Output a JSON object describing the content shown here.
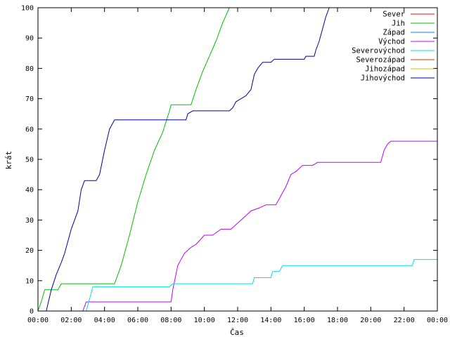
{
  "chart_data": {
    "type": "line",
    "title": "",
    "xlabel": "Čas",
    "ylabel": "krát",
    "xlim": [
      0,
      24
    ],
    "ylim": [
      0,
      100
    ],
    "grid": false,
    "legend_position": "top-right",
    "x_ticks": [
      "00:00",
      "02:00",
      "04:00",
      "06:00",
      "08:00",
      "10:00",
      "12:00",
      "14:00",
      "16:00",
      "18:00",
      "20:00",
      "22:00",
      "00:00"
    ],
    "y_ticks": [
      "0",
      "10",
      "20",
      "30",
      "40",
      "50",
      "60",
      "70",
      "80",
      "90",
      "100"
    ],
    "series": [
      {
        "name": "Sever",
        "color": "#ff0000",
        "points": []
      },
      {
        "name": "Jih",
        "color": "#00c000",
        "points": [
          [
            0.0,
            0
          ],
          [
            0.2,
            3
          ],
          [
            0.4,
            7
          ],
          [
            0.7,
            7
          ],
          [
            1.2,
            7
          ],
          [
            1.4,
            9
          ],
          [
            2.5,
            9
          ],
          [
            4.6,
            9
          ],
          [
            5.0,
            15
          ],
          [
            5.5,
            25
          ],
          [
            6.0,
            36
          ],
          [
            6.5,
            45
          ],
          [
            7.0,
            53
          ],
          [
            7.5,
            59
          ],
          [
            7.9,
            66
          ],
          [
            8.0,
            68
          ],
          [
            8.5,
            68
          ],
          [
            9.2,
            68
          ],
          [
            9.5,
            73
          ],
          [
            9.9,
            79
          ],
          [
            10.3,
            84
          ],
          [
            10.7,
            89
          ],
          [
            11.1,
            95
          ],
          [
            11.5,
            100
          ]
        ]
      },
      {
        "name": "Západ",
        "color": "#0080ff",
        "points": []
      },
      {
        "name": "Východ",
        "color": "#c000ff",
        "points": [
          [
            2.7,
            0
          ],
          [
            2.9,
            3
          ],
          [
            4.0,
            3
          ],
          [
            8.0,
            3
          ],
          [
            8.1,
            7
          ],
          [
            8.4,
            15
          ],
          [
            8.8,
            19
          ],
          [
            9.2,
            21
          ],
          [
            9.5,
            22
          ],
          [
            10.0,
            25
          ],
          [
            10.5,
            25
          ],
          [
            11.0,
            27
          ],
          [
            11.6,
            27
          ],
          [
            12.0,
            29
          ],
          [
            12.4,
            31
          ],
          [
            12.8,
            33
          ],
          [
            13.3,
            34
          ],
          [
            13.7,
            35
          ],
          [
            14.3,
            35
          ],
          [
            14.6,
            38
          ],
          [
            14.9,
            41
          ],
          [
            15.2,
            45
          ],
          [
            15.5,
            46
          ],
          [
            15.9,
            48
          ],
          [
            16.5,
            48
          ],
          [
            16.8,
            49
          ],
          [
            18.0,
            49
          ],
          [
            20.6,
            49
          ],
          [
            20.8,
            53
          ],
          [
            21.0,
            55
          ],
          [
            21.2,
            56
          ],
          [
            22.0,
            56
          ],
          [
            24.0,
            56
          ]
        ]
      },
      {
        "name": "Severovýchod",
        "color": "#00e0e0",
        "points": [
          [
            2.9,
            0
          ],
          [
            3.1,
            4
          ],
          [
            3.3,
            8
          ],
          [
            4.0,
            8
          ],
          [
            7.9,
            8
          ],
          [
            8.1,
            9
          ],
          [
            10.0,
            9
          ],
          [
            12.9,
            9
          ],
          [
            13.0,
            11
          ],
          [
            14.0,
            11
          ],
          [
            14.1,
            13
          ],
          [
            14.5,
            13
          ],
          [
            14.7,
            15
          ],
          [
            16.0,
            15
          ],
          [
            22.5,
            15
          ],
          [
            22.6,
            17
          ],
          [
            24.0,
            17
          ]
        ]
      },
      {
        "name": "Severozápad",
        "color": "#c04000",
        "points": []
      },
      {
        "name": "Jihozápad",
        "color": "#c8c800",
        "points": []
      },
      {
        "name": "Jihovýchod",
        "color": "#0000a0",
        "points": [
          [
            0.5,
            0
          ],
          [
            0.8,
            7
          ],
          [
            1.1,
            12
          ],
          [
            1.4,
            16
          ],
          [
            1.6,
            19
          ],
          [
            2.0,
            27
          ],
          [
            2.4,
            33
          ],
          [
            2.6,
            40
          ],
          [
            2.8,
            43
          ],
          [
            3.5,
            43
          ],
          [
            3.7,
            45
          ],
          [
            4.0,
            53
          ],
          [
            4.3,
            60
          ],
          [
            4.5,
            62
          ],
          [
            4.6,
            63
          ],
          [
            6.0,
            63
          ],
          [
            8.9,
            63
          ],
          [
            9.0,
            65
          ],
          [
            9.3,
            66
          ],
          [
            10.0,
            66
          ],
          [
            11.5,
            66
          ],
          [
            11.7,
            67
          ],
          [
            11.9,
            69
          ],
          [
            12.2,
            70
          ],
          [
            12.5,
            71
          ],
          [
            12.8,
            73
          ],
          [
            13.0,
            78
          ],
          [
            13.2,
            80
          ],
          [
            13.5,
            82
          ],
          [
            14.0,
            82
          ],
          [
            14.2,
            83
          ],
          [
            15.0,
            83
          ],
          [
            16.0,
            83
          ],
          [
            16.1,
            84
          ],
          [
            16.6,
            84
          ],
          [
            16.7,
            86
          ],
          [
            16.9,
            89
          ],
          [
            17.1,
            93
          ],
          [
            17.3,
            97
          ],
          [
            17.5,
            100
          ]
        ]
      }
    ]
  }
}
